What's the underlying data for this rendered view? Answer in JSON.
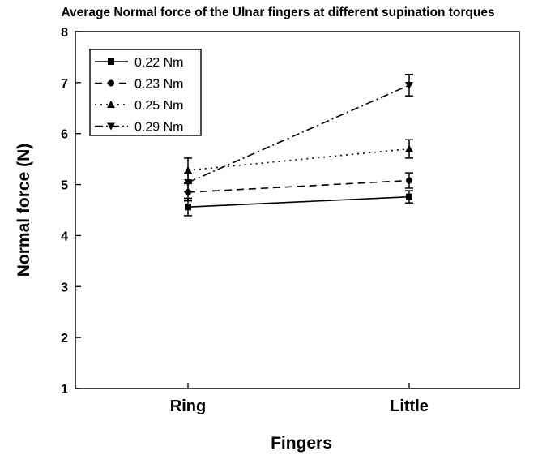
{
  "chart_data": {
    "type": "line",
    "title": "Average Normal force of the Ulnar fingers at different supination torques",
    "xlabel": "Fingers",
    "ylabel": "Normal force (N)",
    "categories": [
      "Ring",
      "Little"
    ],
    "ylim": [
      1,
      8
    ],
    "yticks": [
      "1",
      "2",
      "3",
      "4",
      "5",
      "6",
      "7",
      "8"
    ],
    "grid": false,
    "legend_position": "top-left",
    "series": [
      {
        "name": "0.22 Nm",
        "values": [
          4.56,
          4.76
        ],
        "errors": [
          0.17,
          0.12
        ],
        "marker": "square",
        "dash": "solid"
      },
      {
        "name": "0.23 Nm",
        "values": [
          4.85,
          5.08
        ],
        "errors": [
          0.17,
          0.15
        ],
        "marker": "circle",
        "dash": "dashed"
      },
      {
        "name": "0.25 Nm",
        "values": [
          5.28,
          5.7
        ],
        "errors": [
          0.24,
          0.18
        ],
        "marker": "triangle-up",
        "dash": "dotted"
      },
      {
        "name": "0.29 Nm",
        "values": [
          5.04,
          6.95
        ],
        "errors": [
          0.18,
          0.21
        ],
        "marker": "triangle-down",
        "dash": "dashdot"
      }
    ]
  }
}
